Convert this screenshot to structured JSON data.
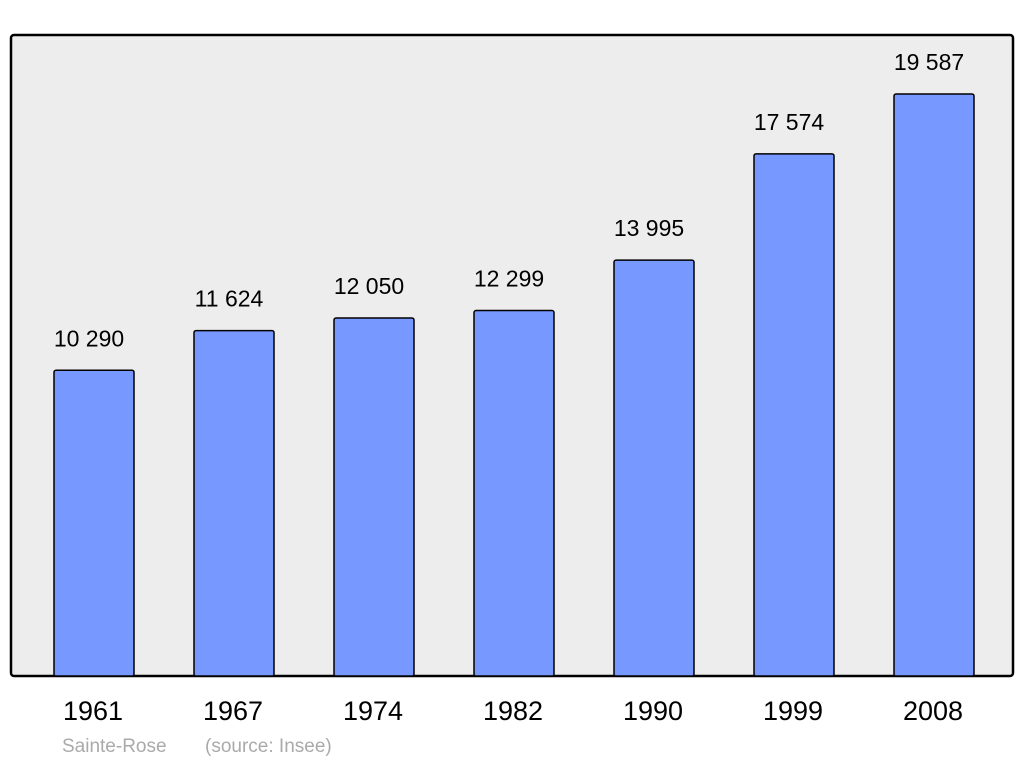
{
  "chart_data": {
    "type": "bar",
    "categories": [
      "1961",
      "1967",
      "1974",
      "1982",
      "1990",
      "1999",
      "2008"
    ],
    "values": [
      10290,
      11624,
      12050,
      12299,
      13995,
      17574,
      19587
    ],
    "value_labels": [
      "10 290",
      "11 624",
      "12 050",
      "12 299",
      "13 995",
      "17 574",
      "19 587"
    ],
    "color": "#7799ff",
    "caption": "Sainte-Rose",
    "source": "(source: Insee)"
  }
}
